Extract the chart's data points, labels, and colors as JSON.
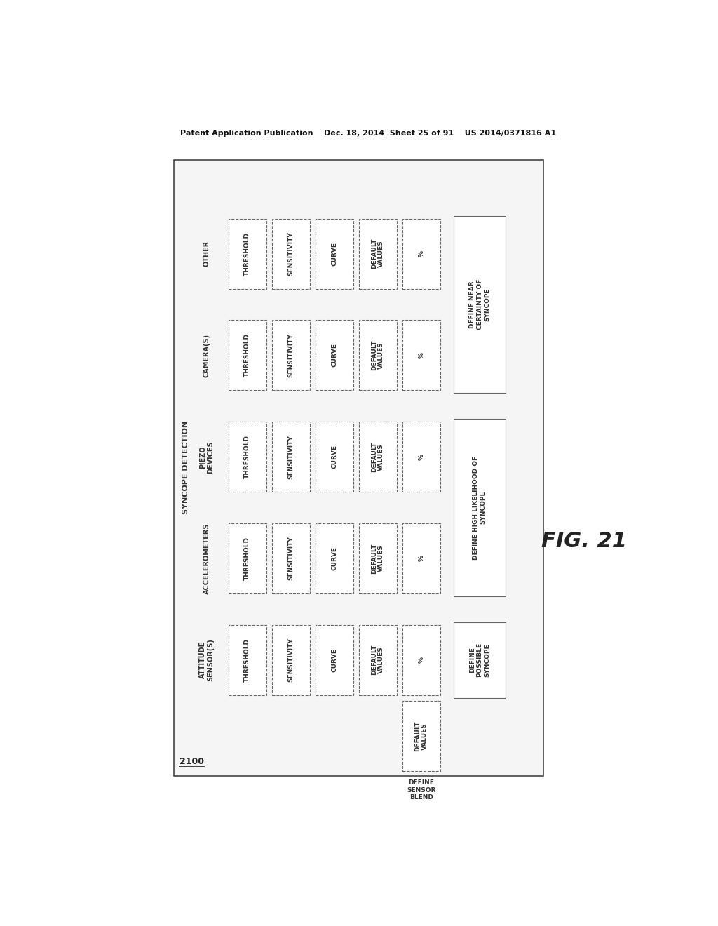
{
  "title_header": "Patent Application Publication    Dec. 18, 2014  Sheet 25 of 91    US 2014/0371816 A1",
  "fig_label": "FIG. 21",
  "diagram_id": "2100",
  "left_label": "SYNCOPE DETECTION",
  "rows": [
    {
      "row_label": "OTHER",
      "boxes": [
        "THRESHOLD",
        "SENSITIVITY",
        "CURVE",
        "DEFAULT\nVALUES",
        "%"
      ]
    },
    {
      "row_label": "CAMERA(S)",
      "boxes": [
        "THRESHOLD",
        "SENSITIVITY",
        "CURVE",
        "DEFAULT\nVALUES",
        "%"
      ]
    },
    {
      "row_label": "PIEZO\nDEVICES",
      "boxes": [
        "THRESHOLD",
        "SENSITIVITY",
        "CURVE",
        "DEFAULT\nVALUES",
        "%"
      ]
    },
    {
      "row_label": "ACCELEROMETERS",
      "boxes": [
        "THRESHOLD",
        "SENSITIVITY",
        "CURVE",
        "DEFAULT\nVALUES",
        "%"
      ]
    },
    {
      "row_label": "ATTITUDE\nSENSOR(S)",
      "boxes": [
        "THRESHOLD",
        "SENSITIVITY",
        "CURVE",
        "DEFAULT\nVALUES",
        "%"
      ]
    }
  ],
  "right_boxes": [
    {
      "label": "DEFINE NEAR\nCERTAINTY OF\nSYNCOPE",
      "row_span": [
        0,
        1
      ]
    },
    {
      "label": "DEFINE HIGH LIKELIHOOD OF\nSYNCOPE",
      "row_span": [
        2,
        3
      ]
    },
    {
      "label": "DEFINE\nPOSSIBLE\nSYNCOPE",
      "row_span": [
        4,
        4
      ]
    }
  ],
  "bottom_label": "DEFINE\nSENSOR\nBLEND",
  "bottom_box": "DEFAULT\nVALUES",
  "bg_color": "#ffffff",
  "box_edge_color": "#666666",
  "text_color": "#333333"
}
